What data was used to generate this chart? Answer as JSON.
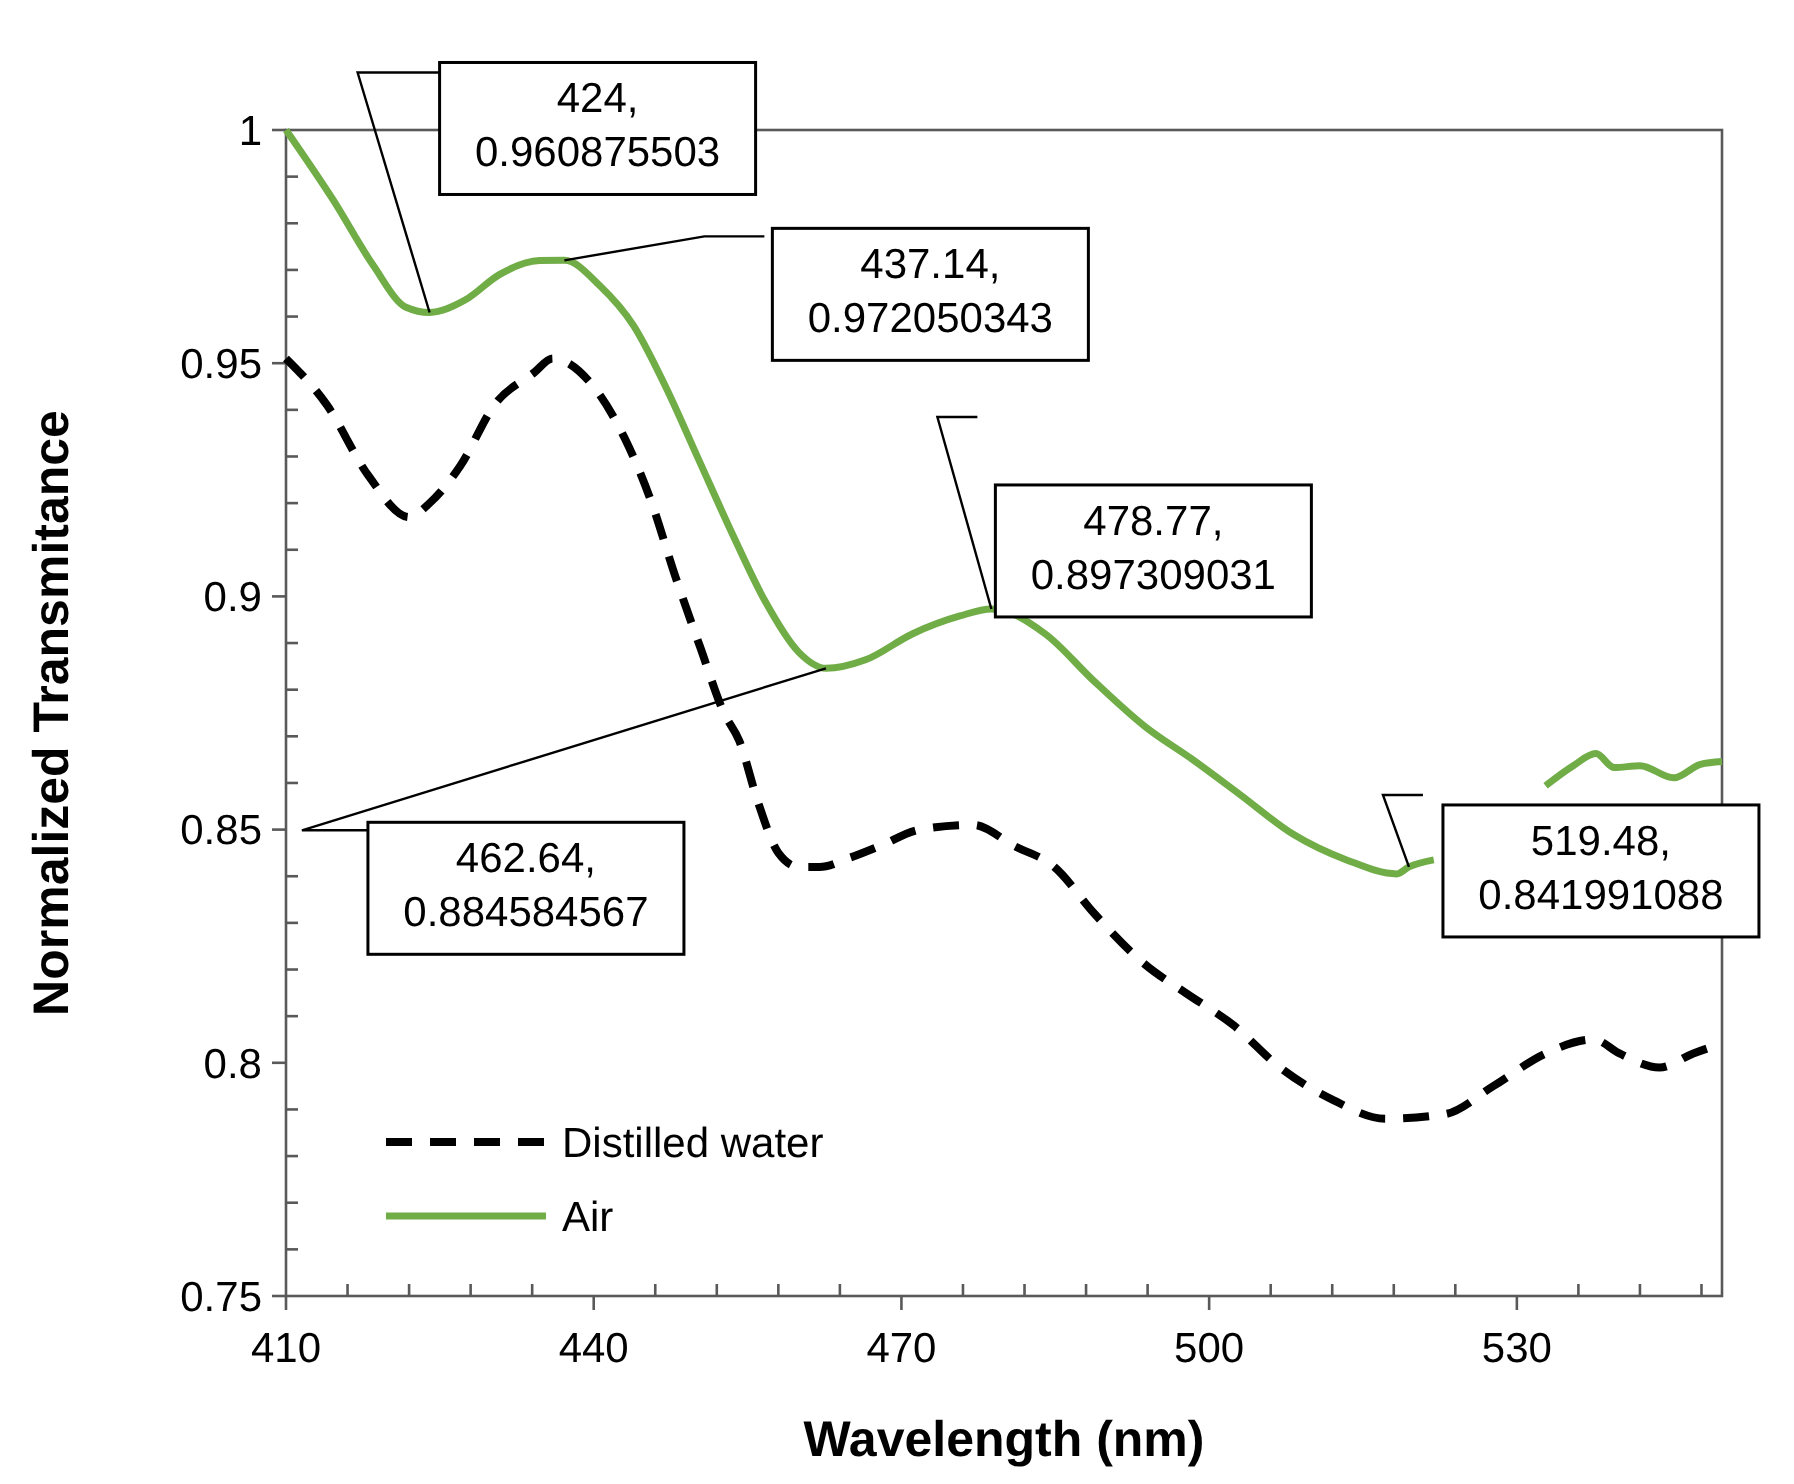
{
  "chart_data": {
    "type": "line",
    "xlabel": "Wavelength (nm)",
    "ylabel": "Normalized Transmitance",
    "xlim": [
      410,
      550
    ],
    "ylim": [
      0.75,
      1
    ],
    "xticks": [
      410,
      {
        "value": 416,
        "label": null
      },
      {
        "value": 422,
        "label": null
      },
      {
        "value": 428,
        "label": null
      },
      {
        "value": 434,
        "label": null
      },
      440,
      {
        "value": 446,
        "label": null
      },
      {
        "value": 452,
        "label": null
      },
      {
        "value": 458,
        "label": null
      },
      {
        "value": 464,
        "label": null
      },
      470,
      {
        "value": 476,
        "label": null
      },
      {
        "value": 482,
        "label": null
      },
      {
        "value": 488,
        "label": null
      },
      {
        "value": 494,
        "label": null
      },
      500,
      {
        "value": 506,
        "label": null
      },
      {
        "value": 512,
        "label": null
      },
      {
        "value": 518,
        "label": null
      },
      {
        "value": 524,
        "label": null
      },
      530,
      {
        "value": 536,
        "label": null
      },
      {
        "value": 542,
        "label": null
      },
      {
        "value": 548,
        "label": null
      }
    ],
    "yticks": [
      0.75,
      {
        "value": 0.76,
        "label": null
      },
      {
        "value": 0.77,
        "label": null
      },
      {
        "value": 0.78,
        "label": null
      },
      {
        "value": 0.79,
        "label": null
      },
      0.8,
      {
        "value": 0.81,
        "label": null
      },
      {
        "value": 0.82,
        "label": null
      },
      {
        "value": 0.83,
        "label": null
      },
      {
        "value": 0.84,
        "label": null
      },
      0.85,
      {
        "value": 0.86,
        "label": null
      },
      {
        "value": 0.87,
        "label": null
      },
      {
        "value": 0.88,
        "label": null
      },
      {
        "value": 0.89,
        "label": null
      },
      0.9,
      {
        "value": 0.91,
        "label": null
      },
      {
        "value": 0.92,
        "label": null
      },
      {
        "value": 0.93,
        "label": null
      },
      {
        "value": 0.94,
        "label": null
      },
      0.95,
      {
        "value": 0.96,
        "label": null
      },
      {
        "value": 0.97,
        "label": null
      },
      {
        "value": 0.98,
        "label": null
      },
      {
        "value": 0.99,
        "label": null
      },
      1
    ],
    "grid": false,
    "legend": "bottom left",
    "series": [
      {
        "name": "Distilled water",
        "color": "#000000",
        "line_style": "dashed",
        "x": [
          410,
          414,
          418,
          422,
          424,
          427,
          430.3,
          434.2,
          436,
          439.6,
          443,
          445.5,
          448,
          450.4,
          452.7,
          454.2,
          456,
          458,
          460,
          462,
          465,
          467.9,
          471.8,
          477,
          481,
          484.9,
          488.8,
          493.8,
          497.7,
          502.4,
          506.9,
          512.1,
          517.2,
          523,
          527.7,
          532.8,
          537.5,
          540,
          543.9,
          547.2,
          549.8
        ],
        "values": [
          0.951,
          0.941,
          0.926,
          0.917,
          0.92,
          0.928,
          0.941,
          0.948,
          0.951,
          0.946,
          0.934,
          0.921,
          0.904,
          0.889,
          0.875,
          0.869,
          0.856,
          0.845,
          0.842,
          0.842,
          0.844,
          0.8465,
          0.85,
          0.851,
          0.8465,
          0.842,
          0.832,
          0.821,
          0.815,
          0.808,
          0.799,
          0.792,
          0.788,
          0.789,
          0.795,
          0.802,
          0.805,
          0.802,
          0.799,
          0.802,
          0.804
        ]
      },
      {
        "name": "Air",
        "color": "#70ad47",
        "line_style": "solid",
        "x": [
          410,
          414.6,
          418.5,
          421.7,
          424,
          427.5,
          430.8,
          434.7,
          437.14,
          440.6,
          443.9,
          447,
          450.3,
          453.6,
          456.7,
          460,
          462.64,
          466.5,
          471.1,
          475.7,
          478.77,
          484,
          488.7,
          493.8,
          498.4,
          502.9,
          508.2,
          513.4,
          518.3,
          519.48,
          521.9,
          527,
          532.8,
          535.5,
          537.7,
          539.5,
          542,
          545.3,
          547.9,
          550
        ],
        "values": [
          1,
          0.985,
          0.971,
          0.962,
          0.960875503,
          0.9636,
          0.969,
          0.972,
          0.972050343,
          0.9666,
          0.958,
          0.945,
          0.929,
          0.913,
          0.899,
          0.888,
          0.884584567,
          0.8864,
          0.892,
          0.8958,
          0.897309031,
          0.892,
          0.882,
          0.872,
          0.865,
          0.8577,
          0.849,
          0.8435,
          0.8405,
          0.841991088,
          0.8435,
          null,
          0.8594,
          0.8637,
          0.8663,
          0.8633,
          0.8637,
          0.8611,
          0.864,
          0.8646
        ]
      }
    ],
    "annotations": [
      {
        "text": "424,\n0.960875503",
        "x": 424,
        "y": 0.960875503
      },
      {
        "text": "437.14,\n0.972050343",
        "x": 437.14,
        "y": 0.972050343
      },
      {
        "text": "478.77,\n0.897309031",
        "x": 478.77,
        "y": 0.897309031
      },
      {
        "text": "462.64,\n0.884584567",
        "x": 462.64,
        "y": 0.884584567
      },
      {
        "text": "519.48,\n0.841991088",
        "x": 519.48,
        "y": 0.841991088
      }
    ]
  }
}
